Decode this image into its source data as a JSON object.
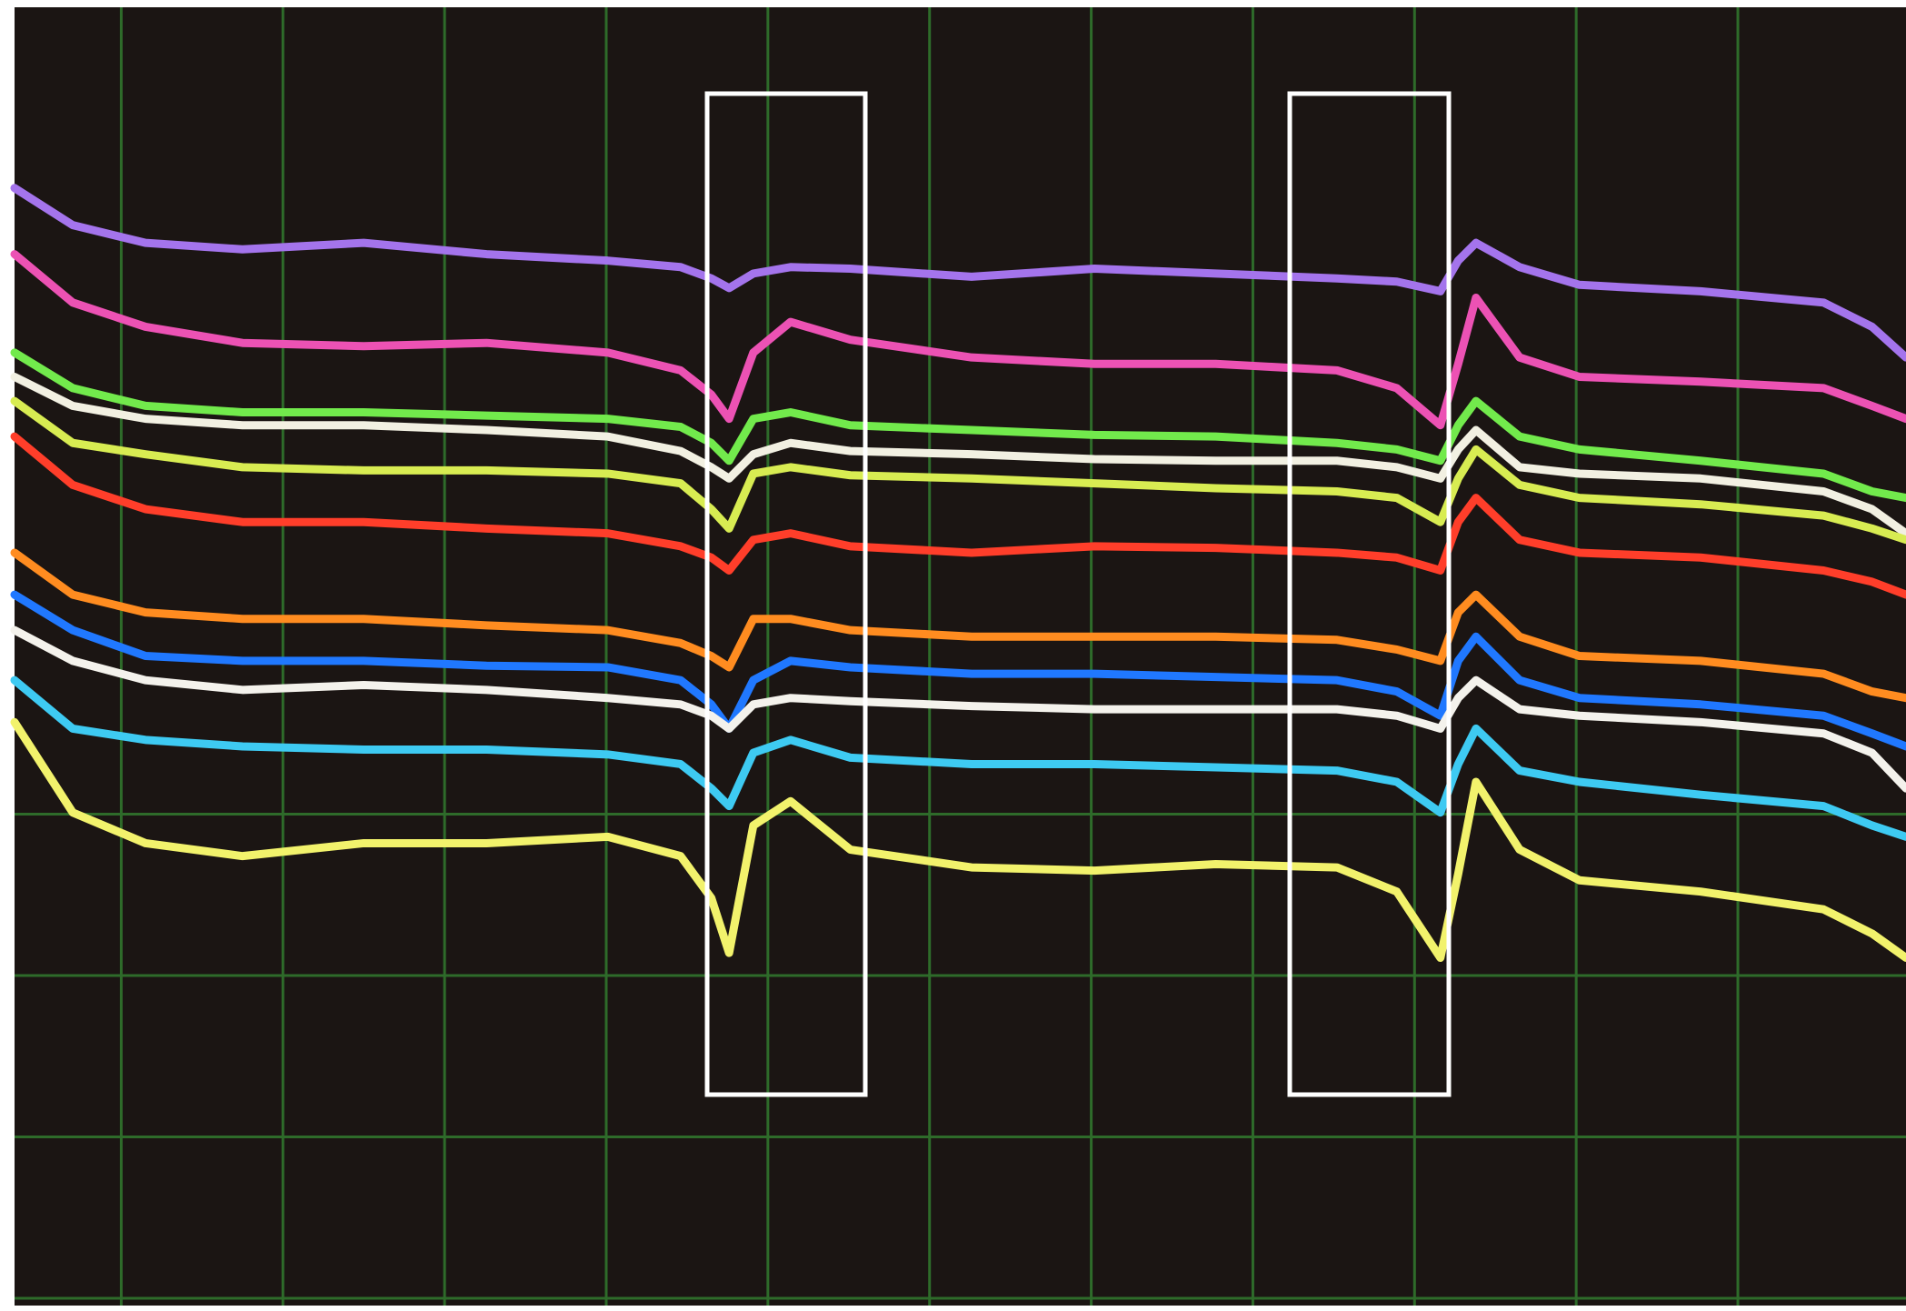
{
  "chart_data": {
    "type": "line",
    "grid": true,
    "background": "#1b1513",
    "grid_color": "#2e6b2a",
    "x": [
      -0.66,
      -0.3,
      0.15,
      0.75,
      1.5,
      2.26,
      3.01,
      3.46,
      3.65,
      3.76,
      3.91,
      4.14,
      4.51,
      5.26,
      6.02,
      6.77,
      7.52,
      7.89,
      8.16,
      8.27,
      8.38,
      8.65,
      9.02,
      9.77,
      10.53,
      10.83,
      11.04
    ],
    "xlim": [
      -0.66,
      11.04
    ],
    "xticks": [
      0,
      1,
      2,
      3,
      4,
      5,
      6,
      7,
      8,
      9,
      10
    ],
    "ylim": [
      0,
      8
    ],
    "yticks": [
      0,
      1,
      2,
      3
    ],
    "series": [
      {
        "color": "#a474ec",
        "values": [
          6.88,
          6.65,
          6.54,
          6.5,
          6.54,
          6.47,
          6.43,
          6.39,
          6.32,
          6.26,
          6.35,
          6.39,
          6.38,
          6.33,
          6.38,
          6.35,
          6.32,
          6.3,
          6.24,
          6.43,
          6.54,
          6.39,
          6.28,
          6.24,
          6.17,
          6.02,
          5.83
        ]
      },
      {
        "color": "#ec52b4",
        "values": [
          6.47,
          6.17,
          6.02,
          5.92,
          5.9,
          5.92,
          5.86,
          5.75,
          5.6,
          5.45,
          5.86,
          6.05,
          5.94,
          5.83,
          5.79,
          5.79,
          5.75,
          5.64,
          5.41,
          5.79,
          6.2,
          5.83,
          5.71,
          5.68,
          5.64,
          5.53,
          5.45
        ]
      },
      {
        "color": "#72ea4c",
        "values": [
          5.86,
          5.64,
          5.53,
          5.49,
          5.49,
          5.47,
          5.45,
          5.4,
          5.3,
          5.19,
          5.45,
          5.49,
          5.41,
          5.38,
          5.35,
          5.34,
          5.3,
          5.26,
          5.19,
          5.41,
          5.56,
          5.34,
          5.26,
          5.19,
          5.11,
          5.0,
          4.96
        ]
      },
      {
        "color": "#f2f0e2",
        "values": [
          5.71,
          5.53,
          5.45,
          5.41,
          5.41,
          5.38,
          5.34,
          5.25,
          5.15,
          5.08,
          5.23,
          5.3,
          5.25,
          5.23,
          5.2,
          5.19,
          5.19,
          5.15,
          5.08,
          5.26,
          5.38,
          5.15,
          5.11,
          5.08,
          5.0,
          4.89,
          4.74
        ]
      },
      {
        "color": "#d8ec52",
        "values": [
          5.56,
          5.3,
          5.23,
          5.15,
          5.13,
          5.13,
          5.11,
          5.05,
          4.89,
          4.77,
          5.11,
          5.15,
          5.1,
          5.08,
          5.05,
          5.02,
          5.0,
          4.96,
          4.81,
          5.08,
          5.26,
          5.04,
          4.96,
          4.92,
          4.85,
          4.77,
          4.7
        ]
      },
      {
        "color": "#ff3e2a",
        "values": [
          5.34,
          5.04,
          4.89,
          4.81,
          4.81,
          4.77,
          4.74,
          4.66,
          4.59,
          4.51,
          4.7,
          4.74,
          4.66,
          4.62,
          4.66,
          4.65,
          4.62,
          4.59,
          4.51,
          4.81,
          4.96,
          4.7,
          4.62,
          4.59,
          4.51,
          4.44,
          4.36
        ]
      },
      {
        "color": "#ff8c20",
        "values": [
          4.62,
          4.36,
          4.25,
          4.21,
          4.21,
          4.17,
          4.14,
          4.06,
          3.98,
          3.91,
          4.21,
          4.21,
          4.14,
          4.1,
          4.1,
          4.1,
          4.08,
          4.02,
          3.95,
          4.25,
          4.36,
          4.1,
          3.98,
          3.95,
          3.87,
          3.76,
          3.72
        ]
      },
      {
        "color": "#2078ff",
        "values": [
          4.36,
          4.14,
          3.98,
          3.95,
          3.95,
          3.92,
          3.91,
          3.83,
          3.68,
          3.53,
          3.83,
          3.95,
          3.91,
          3.87,
          3.87,
          3.85,
          3.83,
          3.76,
          3.61,
          3.95,
          4.1,
          3.83,
          3.72,
          3.68,
          3.61,
          3.5,
          3.42
        ]
      },
      {
        "color": "#f4f2ec",
        "values": [
          4.14,
          3.95,
          3.83,
          3.77,
          3.8,
          3.77,
          3.72,
          3.68,
          3.61,
          3.53,
          3.68,
          3.72,
          3.7,
          3.67,
          3.65,
          3.65,
          3.65,
          3.61,
          3.53,
          3.72,
          3.83,
          3.65,
          3.61,
          3.57,
          3.5,
          3.38,
          3.16
        ]
      },
      {
        "color": "#3ecaf2",
        "values": [
          3.83,
          3.53,
          3.46,
          3.42,
          3.4,
          3.4,
          3.37,
          3.31,
          3.16,
          3.05,
          3.38,
          3.46,
          3.35,
          3.31,
          3.31,
          3.29,
          3.27,
          3.2,
          3.01,
          3.31,
          3.53,
          3.27,
          3.2,
          3.12,
          3.05,
          2.93,
          2.86
        ]
      },
      {
        "color": "#f2f26c",
        "values": [
          3.57,
          3.01,
          2.82,
          2.74,
          2.82,
          2.82,
          2.86,
          2.74,
          2.48,
          2.14,
          2.93,
          3.08,
          2.78,
          2.67,
          2.65,
          2.69,
          2.67,
          2.52,
          2.11,
          2.63,
          3.2,
          2.78,
          2.59,
          2.52,
          2.41,
          2.26,
          2.11
        ]
      }
    ]
  }
}
